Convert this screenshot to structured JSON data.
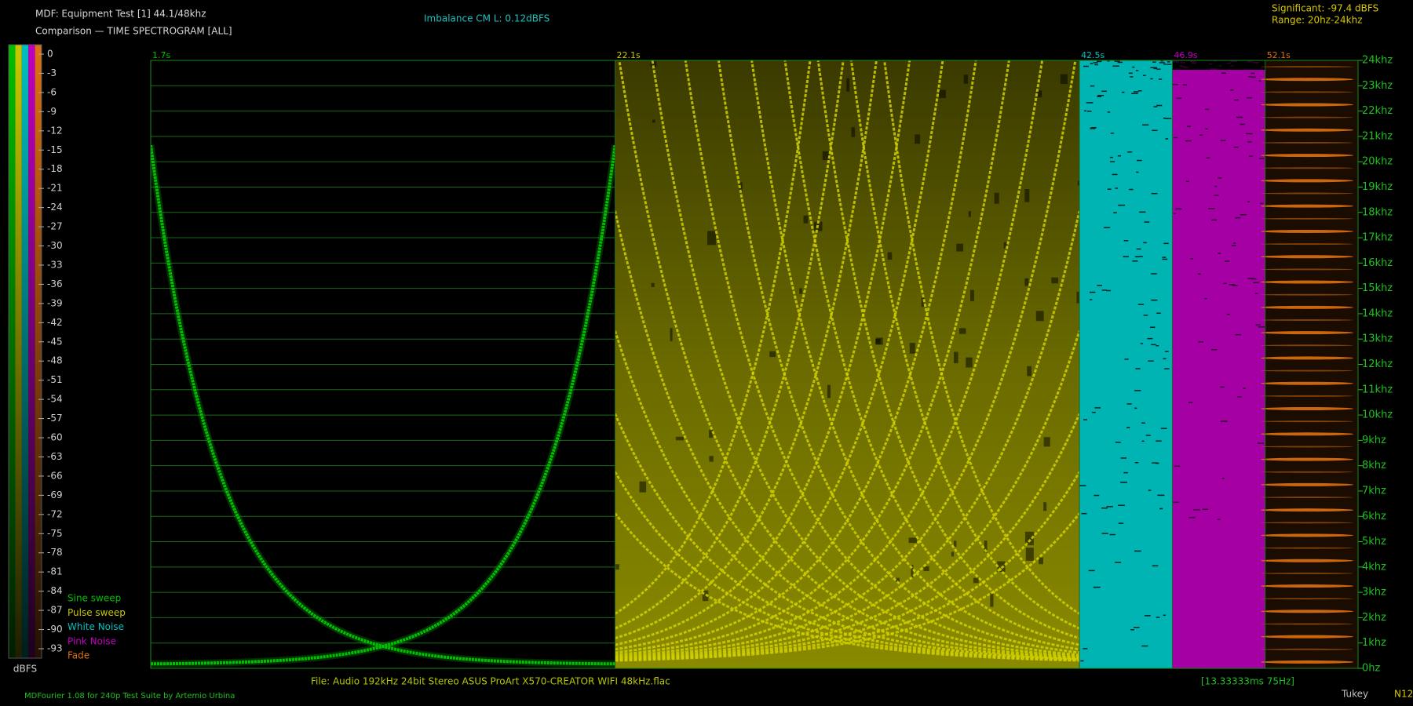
{
  "header": {
    "title": "MDF: Equipment Test [1] 44.1/48khz",
    "subtitle": "Comparison — TIME SPECTROGRAM [ALL]",
    "imbalance": "Imbalance CM L: 0.12dBFS",
    "significant": "Significant: -97.4 dBFS",
    "range": "Range: 20hz-24khz"
  },
  "chart_data": {
    "type": "spectrogram",
    "ylim": [
      0,
      24000
    ],
    "yticks": [
      {
        "value": 0,
        "label": "0hz"
      },
      {
        "value": 1000,
        "label": "1khz"
      },
      {
        "value": 2000,
        "label": "2khz"
      },
      {
        "value": 3000,
        "label": "3khz"
      },
      {
        "value": 4000,
        "label": "4khz"
      },
      {
        "value": 5000,
        "label": "5khz"
      },
      {
        "value": 6000,
        "label": "6khz"
      },
      {
        "value": 7000,
        "label": "7khz"
      },
      {
        "value": 8000,
        "label": "8khz"
      },
      {
        "value": 9000,
        "label": "9khz"
      },
      {
        "value": 10000,
        "label": "10khz"
      },
      {
        "value": 11000,
        "label": "11khz"
      },
      {
        "value": 12000,
        "label": "12khz"
      },
      {
        "value": 13000,
        "label": "13khz"
      },
      {
        "value": 14000,
        "label": "14khz"
      },
      {
        "value": 15000,
        "label": "15khz"
      },
      {
        "value": 16000,
        "label": "16khz"
      },
      {
        "value": 17000,
        "label": "17khz"
      },
      {
        "value": 18000,
        "label": "18khz"
      },
      {
        "value": 19000,
        "label": "19khz"
      },
      {
        "value": 20000,
        "label": "20khz"
      },
      {
        "value": 21000,
        "label": "21khz"
      },
      {
        "value": 22000,
        "label": "22khz"
      },
      {
        "value": 23000,
        "label": "23khz"
      },
      {
        "value": 24000,
        "label": "24khz"
      }
    ],
    "grid": true,
    "colorbar": {
      "label": "dBFS",
      "ticks": [
        0,
        -3,
        -6,
        -9,
        -12,
        -15,
        -18,
        -21,
        -24,
        -27,
        -30,
        -33,
        -36,
        -39,
        -42,
        -45,
        -48,
        -51,
        -54,
        -57,
        -60,
        -63,
        -66,
        -69,
        -72,
        -75,
        -78,
        -81,
        -84,
        -87,
        -90,
        -93
      ]
    },
    "segments": [
      {
        "name": "Sine sweep",
        "color": "#00c000",
        "start": {
          "value": 1.7,
          "label": "1.7s"
        }
      },
      {
        "name": "Pulse sweep",
        "color": "#c8c800",
        "start": {
          "value": 22.1,
          "label": "22.1s"
        }
      },
      {
        "name": "White Noise",
        "color": "#00c0c0",
        "start": {
          "value": 42.5,
          "label": "42.5s"
        }
      },
      {
        "name": "Pink Noise",
        "color": "#c000c0",
        "start": {
          "value": 46.9,
          "label": "46.9s"
        }
      },
      {
        "name": "Fade",
        "color": "#e07010",
        "start": {
          "value": 52.1,
          "label": "52.1s"
        }
      }
    ]
  },
  "footer": {
    "file": "File: Audio  192kHz 24bit Stereo ASUS ProArt X570-CREATOR WIFI 48kHz.flac",
    "resolution": "[13.33333ms 75Hz]",
    "credit": "MDFourier 1.08 for 240p Test Suite by Artemio Urbina",
    "window": "Tukey",
    "note": "N12"
  }
}
